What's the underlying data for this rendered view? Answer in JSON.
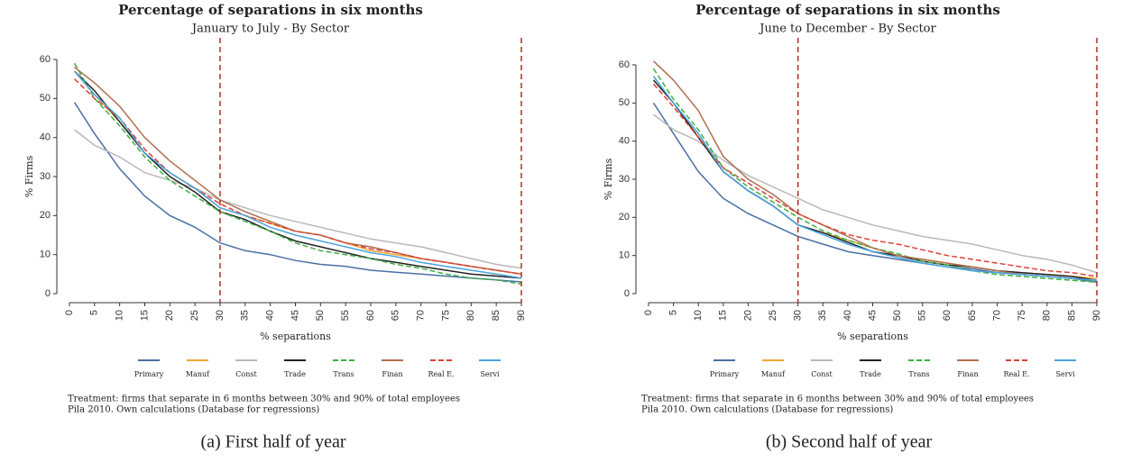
{
  "chart_data": [
    {
      "type": "line",
      "title": "Percentage of separations in six months",
      "subtitle": "January to July - By Sector",
      "xlabel": "% separations",
      "ylabel": "% Firms",
      "x": [
        1,
        5,
        10,
        15,
        20,
        25,
        30,
        35,
        40,
        45,
        50,
        55,
        60,
        65,
        70,
        75,
        80,
        85,
        90
      ],
      "xlim": [
        0,
        90
      ],
      "xticks": [
        0,
        5,
        10,
        15,
        20,
        25,
        30,
        35,
        40,
        45,
        50,
        55,
        60,
        65,
        70,
        75,
        80,
        85,
        90
      ],
      "ylim": [
        0,
        60
      ],
      "yticks": [
        0,
        10,
        20,
        30,
        40,
        50,
        60
      ],
      "vlines": [
        30,
        90
      ],
      "vline_color": "#a83228",
      "series": [
        {
          "name": "Primary",
          "color": "#4a6fa5",
          "dashed": false,
          "values": [
            49,
            41,
            32,
            25,
            20,
            17,
            13,
            11,
            10,
            8.5,
            7.5,
            7,
            6,
            5.5,
            5,
            4.5,
            4,
            3.5,
            3
          ]
        },
        {
          "name": "Manuf",
          "color": "#f0a830",
          "dashed": false,
          "values": [
            57,
            51,
            44,
            36,
            31,
            27,
            22,
            20,
            18,
            16,
            15,
            13,
            11,
            10,
            9,
            8,
            7,
            6,
            5
          ]
        },
        {
          "name": "Const",
          "color": "#b8b8b8",
          "dashed": false,
          "values": [
            42,
            38,
            35,
            31,
            29,
            27,
            24,
            22,
            20,
            18.5,
            17,
            15.5,
            14,
            13,
            12,
            10.5,
            9,
            7.5,
            6.5
          ]
        },
        {
          "name": "Trade",
          "color": "#222222",
          "dashed": false,
          "values": [
            57,
            52,
            44,
            36,
            30,
            26,
            21,
            19,
            16,
            13.5,
            12,
            10.5,
            9,
            8,
            7,
            6,
            5,
            4.5,
            4
          ]
        },
        {
          "name": "Trans",
          "color": "#3cb043",
          "dashed": true,
          "values": [
            59,
            50,
            43,
            35,
            29,
            25,
            21,
            18.5,
            16,
            13,
            11,
            10,
            9,
            7.5,
            6.5,
            5,
            4,
            3.5,
            2.5
          ]
        },
        {
          "name": "Finan",
          "color": "#b07050",
          "dashed": false,
          "values": [
            58,
            54,
            48,
            40,
            34,
            29,
            24,
            21,
            18.5,
            16,
            15,
            13,
            12,
            10.5,
            9,
            8,
            7,
            6,
            5
          ]
        },
        {
          "name": "Real E.",
          "color": "#d9413a",
          "dashed": true,
          "values": [
            55,
            50,
            45,
            37,
            31,
            27,
            23,
            20,
            18,
            16,
            15,
            13,
            11.5,
            10.5,
            9,
            8,
            7,
            6,
            5
          ]
        },
        {
          "name": "Servi",
          "color": "#4aa3df",
          "dashed": false,
          "values": [
            57,
            51,
            45,
            36,
            31,
            27,
            22,
            20,
            17,
            15,
            13.5,
            12,
            10.5,
            9.5,
            8,
            7,
            6,
            5,
            4
          ]
        }
      ],
      "notes": [
        "Treatment: firms that separate in 6 months between 30% and 90% of total employees",
        "Pila 2010. Own calculations (Database for regressions)"
      ],
      "caption": "(a) First half of year"
    },
    {
      "type": "line",
      "title": "Percentage of separations in six months",
      "subtitle": "June to December - By Sector",
      "xlabel": "% separations",
      "ylabel": "% Firms",
      "x": [
        1,
        5,
        10,
        15,
        20,
        25,
        30,
        35,
        40,
        45,
        50,
        55,
        60,
        65,
        70,
        75,
        80,
        85,
        90
      ],
      "xlim": [
        0,
        90
      ],
      "xticks": [
        0,
        5,
        10,
        15,
        20,
        25,
        30,
        35,
        40,
        45,
        50,
        55,
        60,
        65,
        70,
        75,
        80,
        85,
        90
      ],
      "ylim": [
        0,
        60
      ],
      "yticks": [
        0,
        10,
        20,
        30,
        40,
        50,
        60
      ],
      "vlines": [
        30,
        90
      ],
      "vline_color": "#a83228",
      "series": [
        {
          "name": "Primary",
          "color": "#4a6fa5",
          "dashed": false,
          "values": [
            50,
            42,
            32,
            25,
            21,
            18,
            15,
            13,
            11,
            10,
            9,
            8,
            7,
            6.5,
            5.5,
            5,
            4.5,
            4,
            3
          ]
        },
        {
          "name": "Manuf",
          "color": "#f0a830",
          "dashed": false,
          "values": [
            57,
            50,
            41,
            32,
            27,
            23,
            18,
            16,
            14,
            12,
            10,
            9,
            8,
            7,
            6,
            5.5,
            5,
            4.5,
            4
          ]
        },
        {
          "name": "Const",
          "color": "#b8b8b8",
          "dashed": false,
          "values": [
            47,
            43,
            40,
            35,
            31,
            28,
            25,
            22,
            20,
            18,
            16.5,
            15,
            14,
            13,
            11.5,
            10,
            9,
            7.5,
            5.5
          ]
        },
        {
          "name": "Trade",
          "color": "#222222",
          "dashed": false,
          "values": [
            56,
            50,
            41,
            32,
            27,
            23,
            18,
            16,
            13.5,
            11,
            10,
            8.5,
            7.5,
            7,
            6,
            5.5,
            5,
            4.5,
            3.5
          ]
        },
        {
          "name": "Trans",
          "color": "#3cb043",
          "dashed": true,
          "values": [
            59,
            51,
            43,
            33,
            28,
            24,
            20,
            16.5,
            14,
            12,
            10.5,
            8.5,
            7.5,
            6,
            5,
            4.5,
            4,
            3.5,
            3
          ]
        },
        {
          "name": "Finan",
          "color": "#b07050",
          "dashed": false,
          "values": [
            61,
            56,
            48,
            36,
            30,
            26,
            21,
            18,
            15,
            12,
            10,
            9,
            8,
            7,
            6,
            5,
            4.5,
            4,
            3.5
          ]
        },
        {
          "name": "Real E.",
          "color": "#d9413a",
          "dashed": true,
          "values": [
            55,
            49,
            41,
            33,
            29,
            25,
            21,
            18,
            15.5,
            14,
            13,
            11.5,
            10,
            9,
            8,
            7,
            6,
            5.5,
            4.5
          ]
        },
        {
          "name": "Servi",
          "color": "#4aa3df",
          "dashed": false,
          "values": [
            57,
            50,
            42,
            32,
            27,
            23,
            18,
            15.5,
            13,
            11,
            9.5,
            8,
            7,
            6,
            5.5,
            5,
            4.5,
            4,
            3.5
          ]
        }
      ],
      "notes": [
        "Treatment: firms that separate in 6 months between 30% and 90% of total employees",
        "Pila 2010. Own calculations (Database for regressions)"
      ],
      "caption": "(b) Second half of year"
    }
  ]
}
